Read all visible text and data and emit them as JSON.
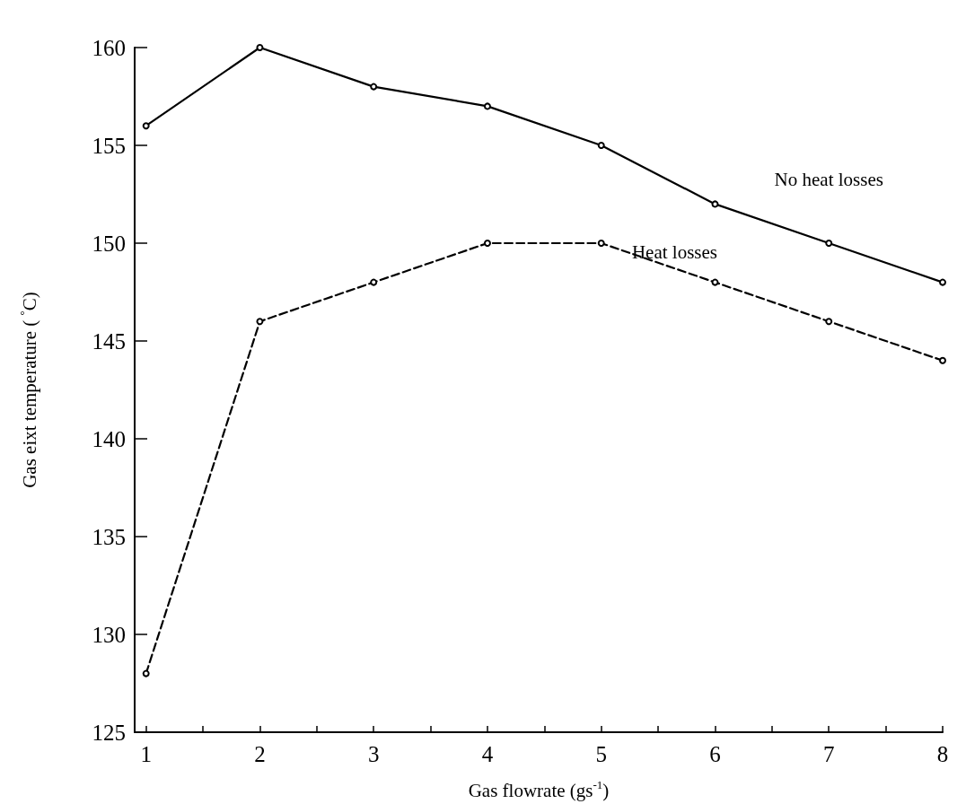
{
  "chart_data": {
    "type": "line",
    "xlabel": "Gas flowrate (gs$^{-1}$)",
    "ylabel": "Gas eixt temperature ( $^{°}$C)",
    "x": [
      1,
      2,
      3,
      4,
      5,
      6,
      7,
      8
    ],
    "series": [
      {
        "name": "No heat losses",
        "color": "#000000",
        "line_style": "solid",
        "values": [
          156,
          160,
          158,
          157,
          155,
          152,
          150,
          148
        ]
      },
      {
        "name": "Heat losses",
        "color": "#000000",
        "line_style": "dashed",
        "values": [
          128,
          146,
          148,
          150,
          150,
          148,
          146,
          144
        ]
      }
    ],
    "xlim": [
      0.9,
      8
    ],
    "xticks": [
      1,
      {
        "value": 1.5,
        "label": null
      },
      2,
      {
        "value": 2.5,
        "label": null
      },
      3,
      {
        "value": 3.5,
        "label": null
      },
      4,
      {
        "value": 4.5,
        "label": null
      },
      5,
      {
        "value": 5.5,
        "label": null
      },
      6,
      {
        "value": 6.5,
        "label": null
      },
      7,
      {
        "value": 7.5,
        "label": null
      },
      8
    ],
    "ylim": [
      125,
      160
    ],
    "yticks": [
      125,
      130,
      135,
      140,
      145,
      150,
      155,
      160
    ],
    "grid": false,
    "legend": false,
    "marker": "circle"
  }
}
